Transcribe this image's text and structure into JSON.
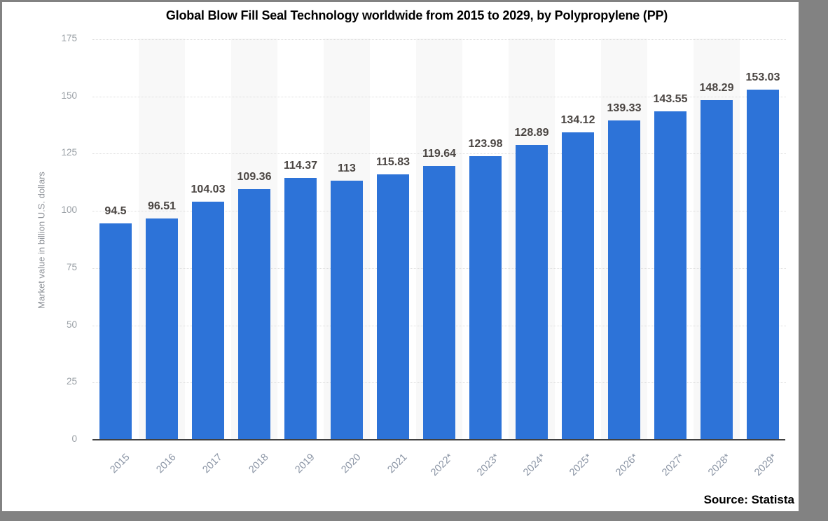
{
  "header": {
    "title": "Global Blow Fill Seal Technology worldwide from 2015 to 2029, by Polypropylene (PP)"
  },
  "footer": {
    "source": "Source: Statista"
  },
  "colors": {
    "bar": "#2d73d8",
    "band": "#f8f8f8",
    "grid": "#dedede",
    "axis": "#404040",
    "frame_border": "#828282",
    "value_label": "#4b4643",
    "x_label": "#8b95a5",
    "y_tick": "#9aa0a6",
    "y_title": "#8e9298"
  },
  "chart_data": {
    "type": "bar",
    "title": "Global Blow Fill Seal Technology worldwide from 2015 to 2029, by Polypropylene (PP)",
    "categories": [
      "2015",
      "2016",
      "2017",
      "2018",
      "2019",
      "2020",
      "2021",
      "2022*",
      "2023*",
      "2024*",
      "2025*",
      "2026*",
      "2027*",
      "2028*",
      "2029*"
    ],
    "values": [
      94.5,
      96.51,
      104.03,
      109.36,
      114.37,
      113,
      115.83,
      119.64,
      123.98,
      128.89,
      134.12,
      139.33,
      143.55,
      148.29,
      153.03
    ],
    "value_labels": [
      "94.5",
      "96.51",
      "104.03",
      "109.36",
      "114.37",
      "113",
      "115.83",
      "119.64",
      "123.98",
      "128.89",
      "134.12",
      "139.33",
      "143.55",
      "148.29",
      "153.03"
    ],
    "xlabel": "",
    "ylabel": "Market value in billion U.S. dollars",
    "ylim": [
      0,
      175
    ],
    "yticks": [
      0,
      25,
      50,
      75,
      100,
      125,
      150,
      175
    ],
    "grid": "horizontal-dotted",
    "legend": "none",
    "band_alternate_columns": true
  }
}
